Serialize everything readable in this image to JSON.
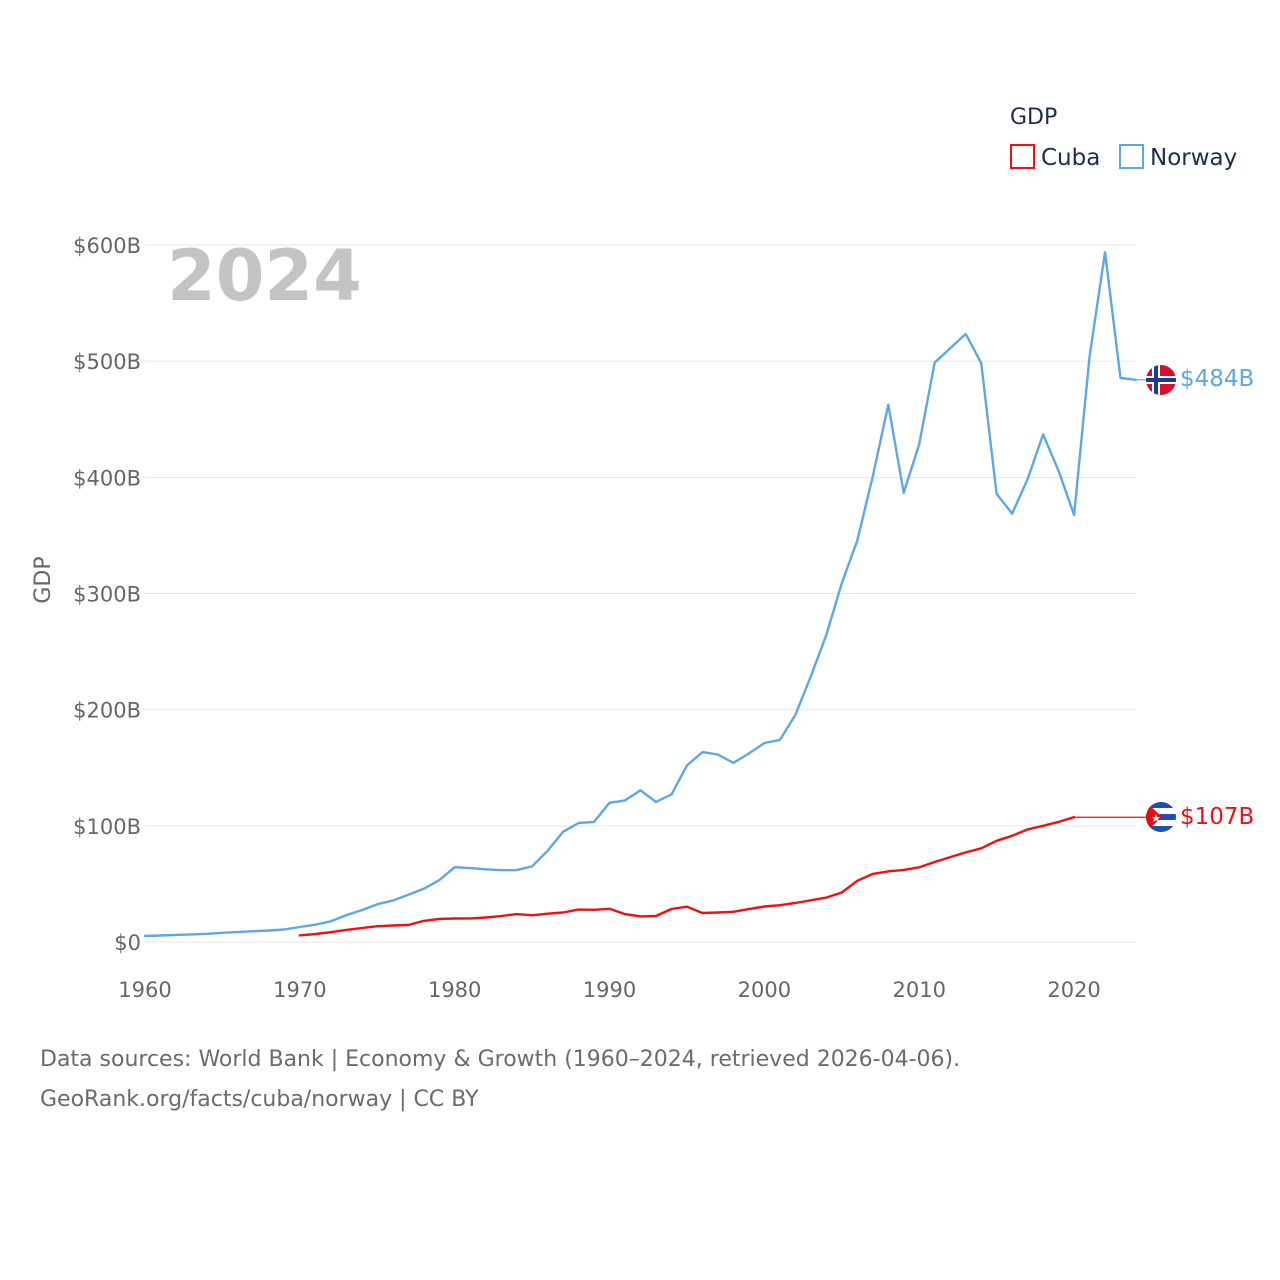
{
  "chart_data": {
    "type": "line",
    "legend_title": "GDP",
    "ylabel": "GDP",
    "xlabel": "",
    "current_year_label": "2024",
    "xlim": [
      1960,
      2024
    ],
    "ylim": [
      0,
      600
    ],
    "x_ticks": [
      1960,
      1970,
      1980,
      1990,
      2000,
      2010,
      2020
    ],
    "x_tick_labels": [
      "1960",
      "1970",
      "1980",
      "1990",
      "2000",
      "2010",
      "2020"
    ],
    "y_ticks": [
      0,
      100,
      200,
      300,
      400,
      500,
      600
    ],
    "y_tick_labels": [
      "$0",
      "$100B",
      "$200B",
      "$300B",
      "$400B",
      "$500B",
      "$600B"
    ],
    "grid": true,
    "legend_position": "top-right",
    "units": "billions USD",
    "series": [
      {
        "name": "Cuba",
        "color": "#ee1111",
        "end_label": "$107B",
        "flag": "cuba-flag",
        "x": [
          1970,
          1971,
          1972,
          1973,
          1974,
          1975,
          1976,
          1977,
          1978,
          1979,
          1980,
          1981,
          1982,
          1983,
          1984,
          1985,
          1986,
          1987,
          1988,
          1989,
          1990,
          1991,
          1992,
          1993,
          1994,
          1995,
          1996,
          1997,
          1998,
          1999,
          2000,
          2001,
          2002,
          2003,
          2004,
          2005,
          2006,
          2007,
          2008,
          2009,
          2010,
          2011,
          2012,
          2013,
          2014,
          2015,
          2016,
          2017,
          2018,
          2019,
          2020
        ],
        "values": [
          5.7,
          6.9,
          8.4,
          10.4,
          12,
          13.6,
          14.2,
          14.6,
          18.2,
          19.9,
          20.2,
          20.3,
          21.1,
          22.3,
          24,
          23,
          24.4,
          25.4,
          27.9,
          27.7,
          28.6,
          24,
          22,
          22.4,
          28.4,
          30.4,
          25,
          25.4,
          26,
          28.3,
          30.6,
          31.7,
          33.6,
          35.9,
          38.2,
          42.6,
          52.7,
          58.6,
          60.8,
          62.1,
          64.3,
          68.9,
          73.1,
          77.1,
          80.7,
          87.1,
          91.4,
          96.9,
          100,
          103.4,
          107.4
        ]
      },
      {
        "name": "Norway",
        "color": "#5fa7e3",
        "end_label": "$484B",
        "flag": "norway-flag",
        "x": [
          1960,
          1961,
          1962,
          1963,
          1964,
          1965,
          1966,
          1967,
          1968,
          1969,
          1970,
          1971,
          1972,
          1973,
          1974,
          1975,
          1976,
          1977,
          1978,
          1979,
          1980,
          1981,
          1982,
          1983,
          1984,
          1985,
          1986,
          1987,
          1988,
          1989,
          1990,
          1991,
          1992,
          1993,
          1994,
          1995,
          1996,
          1997,
          1998,
          1999,
          2000,
          2001,
          2002,
          2003,
          2004,
          2005,
          2006,
          2007,
          2008,
          2009,
          2010,
          2011,
          2012,
          2013,
          2014,
          2015,
          2016,
          2017,
          2018,
          2019,
          2020,
          2021,
          2022,
          2023,
          2024
        ],
        "values": [
          5.2,
          5.6,
          6.1,
          6.5,
          7.1,
          7.9,
          8.5,
          9.3,
          9.9,
          10.8,
          12.9,
          14.9,
          17.8,
          23.1,
          27.5,
          32.5,
          35.6,
          40.7,
          45.8,
          53.2,
          64.4,
          63.6,
          62.6,
          61.8,
          61.9,
          65.2,
          78.5,
          94.9,
          102.4,
          103.4,
          119.8,
          121.9,
          130.6,
          120.6,
          127.1,
          152,
          163.5,
          161.4,
          154.2,
          162.3,
          171.3,
          174,
          195.4,
          228.6,
          264.4,
          308.9,
          345.6,
          400.9,
          462.5,
          386.6,
          428.5,
          498.8,
          511.1,
          523.5,
          498.4,
          385.8,
          368.8,
          398.4,
          437,
          405.5,
          367.6,
          503.5,
          593.7,
          485.5,
          484
        ]
      }
    ]
  },
  "footer": {
    "line1": "Data sources: World Bank | Economy & Growth (1960–2024, retrieved 2026-04-06).",
    "line2": "GeoRank.org/facts/cuba/norway | CC BY"
  }
}
